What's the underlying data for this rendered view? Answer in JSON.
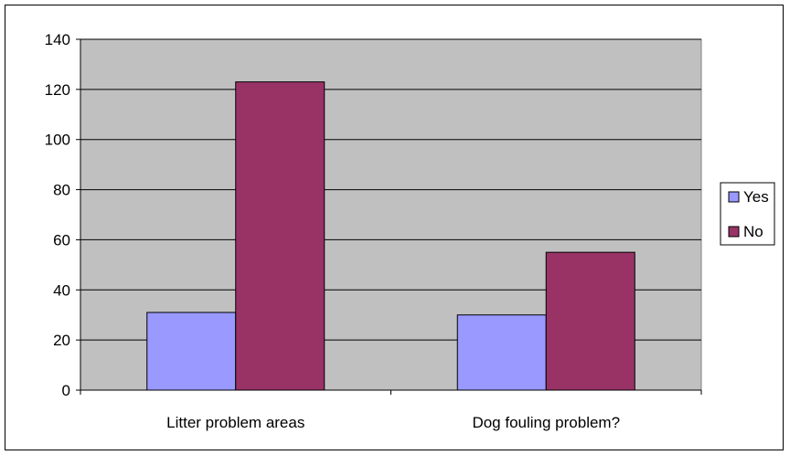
{
  "chart_data": {
    "type": "bar",
    "categories": [
      "Litter problem areas",
      "Dog fouling problem?"
    ],
    "series": [
      {
        "name": "Yes",
        "values": [
          31,
          30
        ],
        "color": "#9999ff"
      },
      {
        "name": "No",
        "values": [
          123,
          55
        ],
        "color": "#993366"
      }
    ],
    "ylim": [
      0,
      140
    ],
    "yticks": [
      "0",
      "20",
      "40",
      "60",
      "80",
      "100",
      "120",
      "140"
    ],
    "grid": true,
    "plot_background": "#c0c0c0",
    "legend_position": "right"
  }
}
